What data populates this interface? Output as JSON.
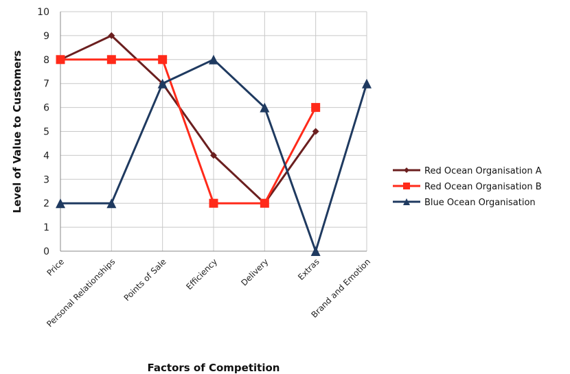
{
  "chart_data": {
    "type": "line",
    "categories": [
      "Price",
      "Personal Relationships",
      "Points of Sale",
      "Efficiency",
      "Delivery",
      "Extras",
      "Brand and Emotion"
    ],
    "series": [
      {
        "name": "Red Ocean Organisation A",
        "values": [
          8,
          9,
          7,
          4,
          2,
          5,
          null
        ],
        "color": "#6b1f1f",
        "marker": "diamond"
      },
      {
        "name": "Red Ocean Organisation B",
        "values": [
          8,
          8,
          8,
          2,
          2,
          6,
          null
        ],
        "color": "#ff2a1a",
        "marker": "square"
      },
      {
        "name": "Blue Ocean Organisation",
        "values": [
          2,
          2,
          7,
          8,
          6,
          0,
          7
        ],
        "color": "#1f3a60",
        "marker": "triangle"
      }
    ],
    "xlabel": "Factors of Competition",
    "ylabel": "Level of Value to Customers",
    "ylim": [
      0,
      10
    ],
    "yticks": [
      0,
      1,
      2,
      3,
      4,
      5,
      6,
      7,
      8,
      9,
      10
    ],
    "grid": "vertical and horizontal",
    "legend": "right"
  }
}
